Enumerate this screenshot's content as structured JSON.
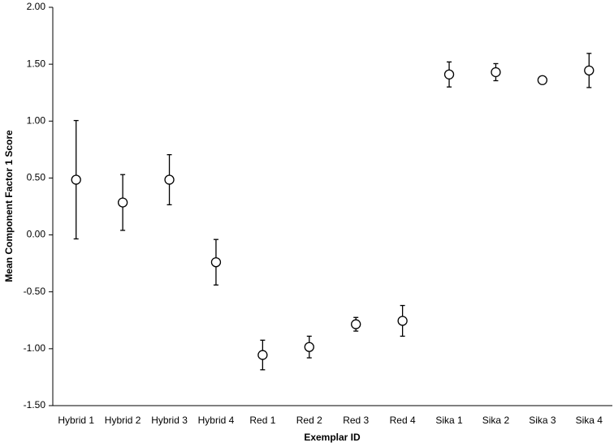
{
  "chart_data": {
    "type": "errorbar",
    "x_label": "Exemplar ID",
    "y_label": "Mean Component Factor 1 Score",
    "categories": [
      "Hybrid 1",
      "Hybrid 2",
      "Hybrid 3",
      "Hybrid 4",
      "Red 1",
      "Red 2",
      "Red 3",
      "Red 4",
      "Sika 1",
      "Sika 2",
      "Sika 3",
      "Sika 4"
    ],
    "values": [
      0.485,
      0.285,
      0.485,
      -0.24,
      -1.055,
      -0.985,
      -0.785,
      -0.755,
      1.41,
      1.43,
      1.36,
      1.445
    ],
    "errors": [
      0.52,
      0.245,
      0.22,
      0.2,
      0.13,
      0.095,
      0.06,
      0.135,
      0.11,
      0.075,
      0.02,
      0.15
    ],
    "color": "#000000",
    "ylim": [
      -1.5,
      2.0
    ],
    "yticks": [
      {
        "value": -1.5,
        "label": "-1.50"
      },
      {
        "value": -1.0,
        "label": "-1.00"
      },
      {
        "value": -0.5,
        "label": "-0.50"
      },
      {
        "value": 0,
        "label": "0.00"
      },
      {
        "value": 0.5,
        "label": "0.50"
      },
      {
        "value": 1.0,
        "label": "1.00"
      },
      {
        "value": 1.5,
        "label": "1.50"
      },
      {
        "value": 2.0,
        "label": "2.00"
      }
    ],
    "grid": false
  }
}
